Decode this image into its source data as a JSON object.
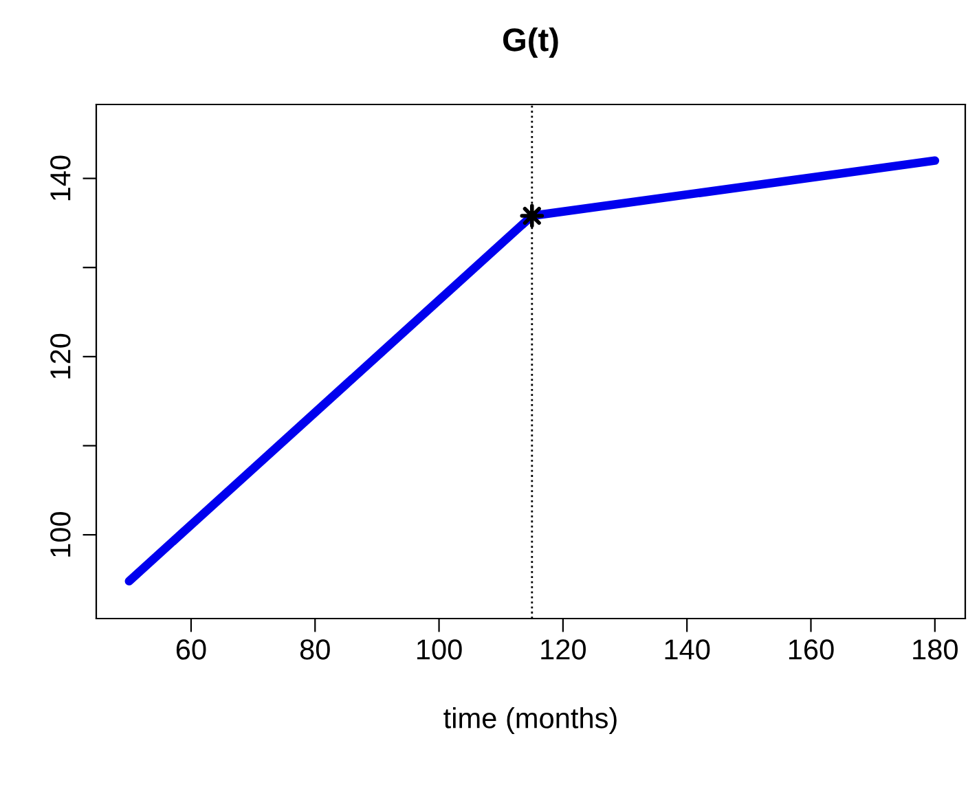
{
  "chart_data": {
    "type": "line",
    "title": "G(t)",
    "xlabel": "time (months)",
    "series": [
      {
        "color": "#0000ee",
        "x": [
          50,
          115
        ],
        "values": [
          94.8,
          135.8
        ],
        "marker": "none"
      },
      {
        "color": "#0000ee",
        "x": [
          115,
          180
        ],
        "values": [
          135.8,
          142.0
        ],
        "marker": "none"
      },
      {
        "type": "scatter",
        "color": "#000000",
        "x": [
          115
        ],
        "values": [
          135.8
        ],
        "marker": "star"
      }
    ],
    "xlim": [
      44.7,
      184.9
    ],
    "ylim": [
      90.6,
      148.3
    ],
    "xticks": [
      60,
      80,
      100,
      120,
      140,
      160,
      180
    ],
    "yticks": [
      100,
      {
        "value": 110,
        "label": null
      },
      120,
      {
        "value": 130,
        "label": null
      },
      140
    ],
    "ref_lines": [
      {
        "axis": "x",
        "value": 115,
        "label": null,
        "color": "#000000",
        "line_style": "dotted"
      }
    ],
    "grid": false,
    "legend": false
  }
}
